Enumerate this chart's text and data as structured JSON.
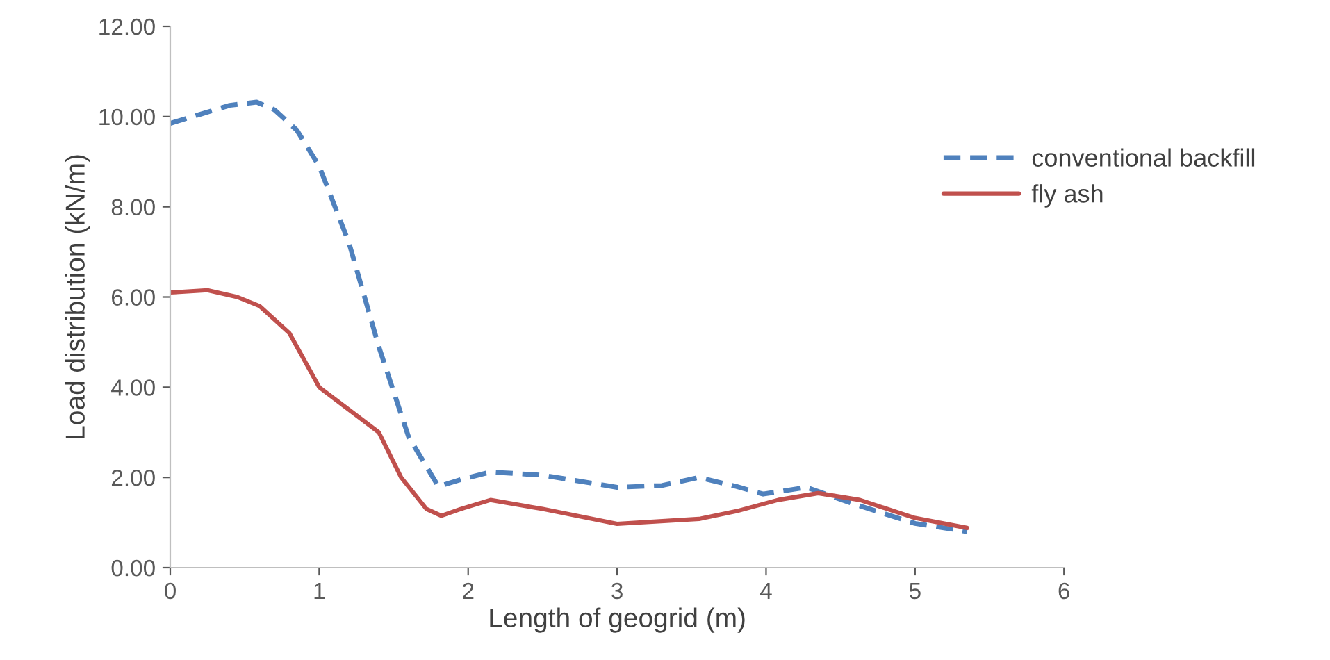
{
  "chart_data": {
    "type": "line",
    "xlabel": "Length of geogrid (m)",
    "ylabel": "Load distribution (kN/m)",
    "xlim": [
      0,
      6
    ],
    "xticks": [
      0,
      1,
      2,
      3,
      4,
      5,
      6
    ],
    "ylim": [
      0,
      12
    ],
    "yticks": [
      {
        "value": 0,
        "label": "0.00"
      },
      {
        "value": 2,
        "label": "2.00"
      },
      {
        "value": 4,
        "label": "4.00"
      },
      {
        "value": 6,
        "label": "6.00"
      },
      {
        "value": 8,
        "label": "8.00"
      },
      {
        "value": 10,
        "label": "10.00"
      },
      {
        "value": 12,
        "label": "12.00"
      }
    ],
    "grid": false,
    "legend": "right",
    "marker": "none",
    "series": [
      {
        "name": "conventional backfill",
        "color": "#4f81bd",
        "line_style": "dashed",
        "x": [
          0,
          0.2,
          0.4,
          0.58,
          0.7,
          0.85,
          1.0,
          1.2,
          1.4,
          1.6,
          1.8,
          1.95,
          2.15,
          2.5,
          3.0,
          3.3,
          3.55,
          3.8,
          3.98,
          4.27,
          4.6,
          5.0,
          5.35
        ],
        "values": [
          9.85,
          10.05,
          10.25,
          10.32,
          10.15,
          9.7,
          8.9,
          7.2,
          4.9,
          2.9,
          1.8,
          1.95,
          2.12,
          2.05,
          1.78,
          1.82,
          2.0,
          1.8,
          1.63,
          1.78,
          1.4,
          0.98,
          0.8
        ]
      },
      {
        "name": "fly ash",
        "color": "#c0504d",
        "line_style": "solid",
        "x": [
          0,
          0.25,
          0.45,
          0.6,
          0.8,
          1.0,
          1.2,
          1.4,
          1.55,
          1.72,
          1.82,
          1.95,
          2.15,
          2.5,
          3.0,
          3.55,
          3.8,
          4.08,
          4.35,
          4.63,
          5.0,
          5.35
        ],
        "values": [
          6.1,
          6.15,
          6.0,
          5.8,
          5.2,
          4.0,
          3.5,
          3.0,
          2.0,
          1.3,
          1.15,
          1.3,
          1.5,
          1.3,
          0.97,
          1.08,
          1.25,
          1.5,
          1.65,
          1.5,
          1.1,
          0.88
        ]
      }
    ]
  }
}
